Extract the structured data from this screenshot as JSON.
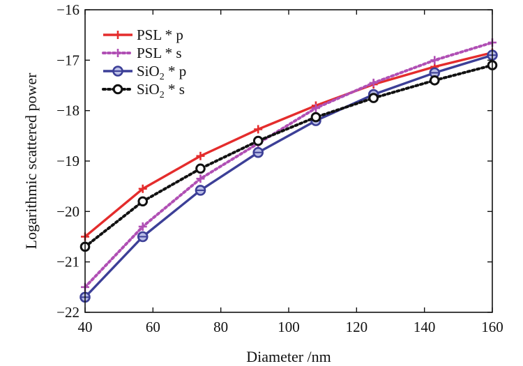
{
  "chart_data": {
    "type": "line",
    "xlabel": "Diameter /nm",
    "ylabel": "Logarithmic scattered power",
    "xlim": [
      40,
      160
    ],
    "ylim": [
      -22,
      -16
    ],
    "xticks": [
      40,
      60,
      80,
      100,
      120,
      140,
      160
    ],
    "yticks": [
      -22,
      -21,
      -20,
      -19,
      -18,
      -17,
      -16
    ],
    "grid": false,
    "legend": "top-left",
    "x": [
      40,
      57,
      74,
      91,
      108,
      125,
      143,
      160
    ],
    "series": [
      {
        "name": "PSL * p",
        "legend_main": "PSL * p",
        "legend_sub": "",
        "legend_tail": "",
        "color": "#e42c2c",
        "line": "solid",
        "marker": "plus",
        "values": [
          -20.5,
          -19.55,
          -18.9,
          -18.37,
          -17.9,
          -17.48,
          -17.13,
          -16.85
        ]
      },
      {
        "name": "PSL * s",
        "legend_main": "PSL * s",
        "legend_sub": "",
        "legend_tail": "",
        "color": "#b04fb4",
        "line": "dotted",
        "marker": "plus",
        "values": [
          -21.5,
          -20.3,
          -19.35,
          -18.65,
          -17.95,
          -17.45,
          -17.0,
          -16.65
        ]
      },
      {
        "name": "SiO2 * p",
        "legend_main": "SiO",
        "legend_sub": "2",
        "legend_tail": " * p",
        "color": "#3c3f97",
        "line": "solid",
        "marker": "circle",
        "values": [
          -21.7,
          -20.5,
          -19.58,
          -18.83,
          -18.2,
          -17.68,
          -17.25,
          -16.9
        ]
      },
      {
        "name": "SiO2 * s",
        "legend_main": "SiO",
        "legend_sub": "2",
        "legend_tail": " * s",
        "color": "#111111",
        "line": "dotted",
        "marker": "circle-open",
        "values": [
          -20.7,
          -19.8,
          -19.15,
          -18.6,
          -18.13,
          -17.75,
          -17.4,
          -17.1
        ]
      }
    ]
  }
}
